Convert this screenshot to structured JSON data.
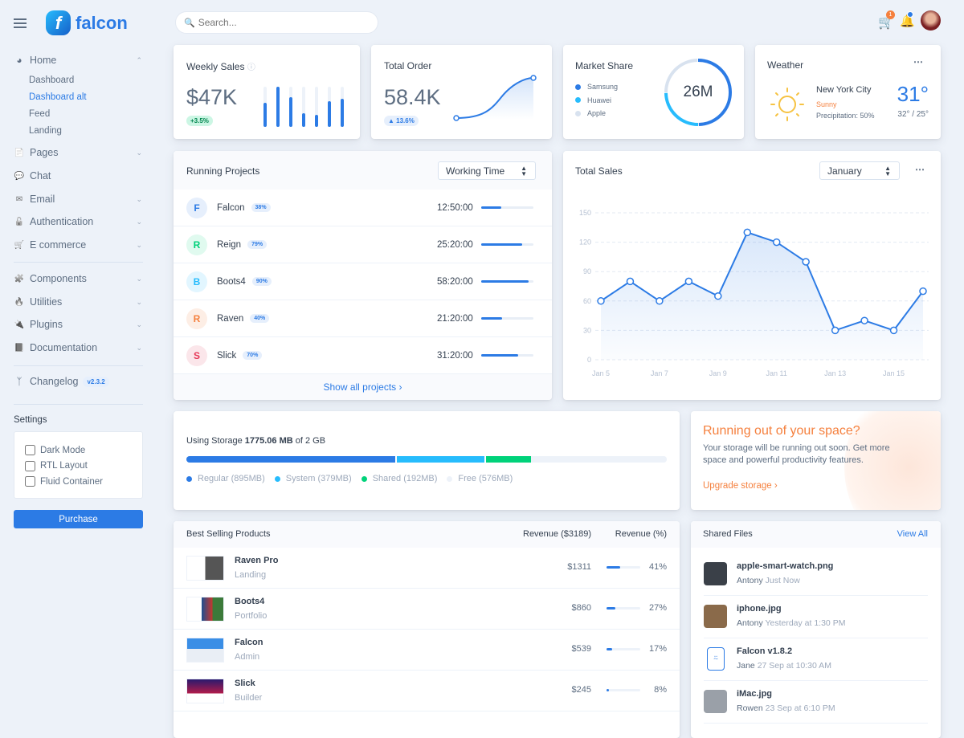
{
  "brand": {
    "name": "falcon"
  },
  "search": {
    "placeholder": "Search..."
  },
  "topbar": {
    "cart_count": "1"
  },
  "sidebar": {
    "home": {
      "label": "Home",
      "sub": [
        "Dashboard",
        "Dashboard alt",
        "Feed",
        "Landing"
      ],
      "active": "Dashboard alt"
    },
    "items": [
      {
        "label": "Pages",
        "icon": "pages-icon"
      },
      {
        "label": "Chat",
        "icon": "chat-icon"
      },
      {
        "label": "Email",
        "icon": "email-icon"
      },
      {
        "label": "Authentication",
        "icon": "lock-icon"
      },
      {
        "label": "E commerce",
        "icon": "cart-icon"
      },
      {
        "label": "Components",
        "icon": "puzzle-icon"
      },
      {
        "label": "Utilities",
        "icon": "fire-icon"
      },
      {
        "label": "Plugins",
        "icon": "plug-icon"
      },
      {
        "label": "Documentation",
        "icon": "book-icon"
      }
    ],
    "changelog": {
      "label": "Changelog",
      "version": "v2.3.2"
    },
    "settings": {
      "title": "Settings",
      "options": [
        "Dark Mode",
        "RTL Layout",
        "Fluid Container"
      ]
    },
    "purchase": "Purchase"
  },
  "weekly_sales": {
    "title": "Weekly Sales",
    "value": "$47K",
    "change": "+3.5%",
    "bars": [
      60,
      100,
      75,
      35,
      30,
      65,
      70
    ]
  },
  "total_order": {
    "title": "Total Order",
    "value": "58.4K",
    "change": "13.6%"
  },
  "market_share": {
    "title": "Market Share",
    "total": "26M",
    "legend": [
      {
        "name": "Samsung",
        "color": "#2c7be5",
        "value": 50
      },
      {
        "name": "Huawei",
        "color": "#27bcfd",
        "value": 25
      },
      {
        "name": "Apple",
        "color": "#d8e2ef",
        "value": 25
      }
    ]
  },
  "weather": {
    "title": "Weather",
    "city": "New York City",
    "condition": "Sunny",
    "precipitation": "Precipitation: 50%",
    "temp": "31°",
    "range": "32° / 25°"
  },
  "projects": {
    "title": "Running Projects",
    "select": "Working Time",
    "footer": "Show all projects",
    "rows": [
      {
        "initial": "F",
        "name": "Falcon",
        "pct": "38%",
        "time": "12:50:00",
        "progress": 38,
        "color": "#2c7be5",
        "bg": "#e6effc"
      },
      {
        "initial": "R",
        "name": "Reign",
        "pct": "79%",
        "time": "25:20:00",
        "progress": 79,
        "color": "#00d27a",
        "bg": "#e0faef"
      },
      {
        "initial": "B",
        "name": "Boots4",
        "pct": "90%",
        "time": "58:20:00",
        "progress": 90,
        "color": "#27bcfd",
        "bg": "#e2f6ff"
      },
      {
        "initial": "R",
        "name": "Raven",
        "pct": "40%",
        "time": "21:20:00",
        "progress": 40,
        "color": "#f5803e",
        "bg": "#fdeee5"
      },
      {
        "initial": "S",
        "name": "Slick",
        "pct": "70%",
        "time": "31:20:00",
        "progress": 70,
        "color": "#e63757",
        "bg": "#fbe6ea"
      }
    ]
  },
  "total_sales": {
    "title": "Total Sales",
    "select": "January"
  },
  "chart_data": {
    "type": "line",
    "title": "Total Sales",
    "x": [
      "Jan 5",
      "Jan 6",
      "Jan 7",
      "Jan 8",
      "Jan 9",
      "Jan 10",
      "Jan 11",
      "Jan 12",
      "Jan 13",
      "Jan 14",
      "Jan 15",
      "Jan 16"
    ],
    "values": [
      60,
      80,
      60,
      80,
      65,
      130,
      120,
      100,
      30,
      40,
      30,
      70
    ],
    "xticks": [
      "Jan 5",
      "Jan 7",
      "Jan 9",
      "Jan 11",
      "Jan 13",
      "Jan 15"
    ],
    "yticks": [
      0,
      30,
      60,
      90,
      120,
      150
    ],
    "ylim": [
      0,
      150
    ],
    "grid": true,
    "color": "#2c7be5"
  },
  "storage": {
    "prefix": "Using Storage",
    "used": "1775.06 MB",
    "suffix": "of 2 GB",
    "segments": [
      {
        "label": "Regular (895MB)",
        "value": 895,
        "color": "#2c7be5"
      },
      {
        "label": "System (379MB)",
        "value": 379,
        "color": "#27bcfd"
      },
      {
        "label": "Shared (192MB)",
        "value": 192,
        "color": "#00d27a"
      },
      {
        "label": "Free (576MB)",
        "value": 576,
        "color": "#edf2f9"
      }
    ]
  },
  "space": {
    "title": "Running out of your space?",
    "text": "Your storage will be running out soon. Get more space and powerful productivity features.",
    "link": "Upgrade storage"
  },
  "products": {
    "title": "Best Selling Products",
    "col1": "Revenue ($3189)",
    "col2": "Revenue (%)",
    "rows": [
      {
        "name": "Raven Pro",
        "type": "Landing",
        "revenue": "$1311",
        "pct": "41%",
        "value": 41
      },
      {
        "name": "Boots4",
        "type": "Portfolio",
        "revenue": "$860",
        "pct": "27%",
        "value": 27
      },
      {
        "name": "Falcon",
        "type": "Admin",
        "revenue": "$539",
        "pct": "17%",
        "value": 17
      },
      {
        "name": "Slick",
        "type": "Builder",
        "revenue": "$245",
        "pct": "8%",
        "value": 8
      }
    ]
  },
  "files": {
    "title": "Shared Files",
    "view_all": "View All",
    "rows": [
      {
        "name": "apple-smart-watch.png",
        "user": "Antony",
        "time": "Just Now"
      },
      {
        "name": "iphone.jpg",
        "user": "Antony",
        "time": "Yesterday at 1:30 PM"
      },
      {
        "name": "Falcon v1.8.2",
        "user": "Jane",
        "time": "27 Sep at 10:30 AM"
      },
      {
        "name": "iMac.jpg",
        "user": "Rowen",
        "time": "23 Sep at 6:10 PM"
      }
    ]
  }
}
